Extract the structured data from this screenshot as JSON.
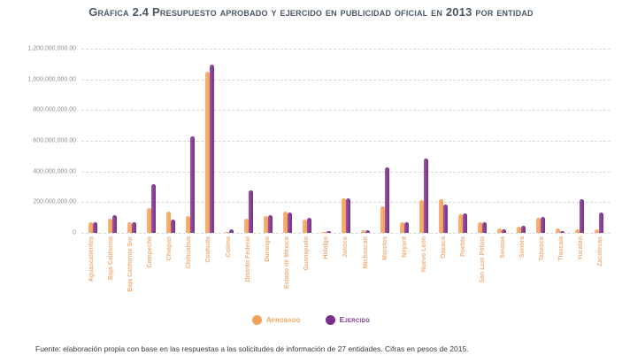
{
  "header": {
    "title": "Gráfica 2.4 Presupuesto aprobado y ejercido en publicidad oficial en 2013 por entidad"
  },
  "source_note": "Fuente: elaboración propia con base en las respuestas a las solicitudes de información de 27 entidades. Cifras en pesos de 2015.",
  "chart_data": {
    "type": "bar",
    "title": "Gráfica 2.4 Presupuesto aprobado y ejercido en publicidad oficial en 2013 por entidad",
    "xlabel": "",
    "ylabel": "",
    "ylim": [
      0,
      1200000000
    ],
    "grid": "horizontal-dashed",
    "legend_position": "bottom-center",
    "y_ticks": [
      "1,200,000,000.00",
      "1,000,000,000.00",
      "800,000,000.00",
      "600,000,000.00",
      "400,000,000.00",
      "200,000,000.00",
      "0"
    ],
    "categories": [
      "Aguascalientes",
      "Baja California",
      "Baja California Sur",
      "Campeche",
      "Chiapas",
      "Chihuahua",
      "Coahuila",
      "Colima",
      "Distrito Federal",
      "Durango",
      "Estado de México",
      "Guanajuato",
      "Hidalgo",
      "Jalisco",
      "Michoacán",
      "Morelos",
      "Nayarit",
      "Nuevo León",
      "Oaxaca",
      "Puebla",
      "San Luis Potosí",
      "Sinaloa",
      "Sonora",
      "Tabasco",
      "Tlaxcala",
      "Yucatán",
      "Zacatecas"
    ],
    "series": [
      {
        "name": "Aprobado",
        "values": [
          70000000,
          90000000,
          67000000,
          160000000,
          137000000,
          112000000,
          1050000000,
          8000000,
          90000000,
          110000000,
          138000000,
          85000000,
          8000000,
          225000000,
          15000000,
          171000000,
          69000000,
          215000000,
          219000000,
          123000000,
          71000000,
          27000000,
          42000000,
          100000000,
          28000000,
          23000000,
          23000000
        ]
      },
      {
        "name": "Ejercido",
        "values": [
          68000000,
          114000000,
          67000000,
          320000000,
          86000000,
          630000000,
          1095000000,
          25000000,
          276000000,
          113000000,
          133000000,
          100000000,
          13000000,
          227000000,
          19000000,
          425000000,
          72000000,
          483000000,
          187000000,
          127000000,
          67000000,
          23000000,
          46000000,
          104000000,
          9000000,
          217000000,
          132000000
        ]
      }
    ],
    "colors": {
      "aprobado": "#F4A259",
      "ejercido": "#7B2D8B",
      "x_label": "#F3AE78",
      "title": "#4A5766",
      "gridline": "#D9D9D9",
      "y_label": "#8E8E8E"
    }
  }
}
